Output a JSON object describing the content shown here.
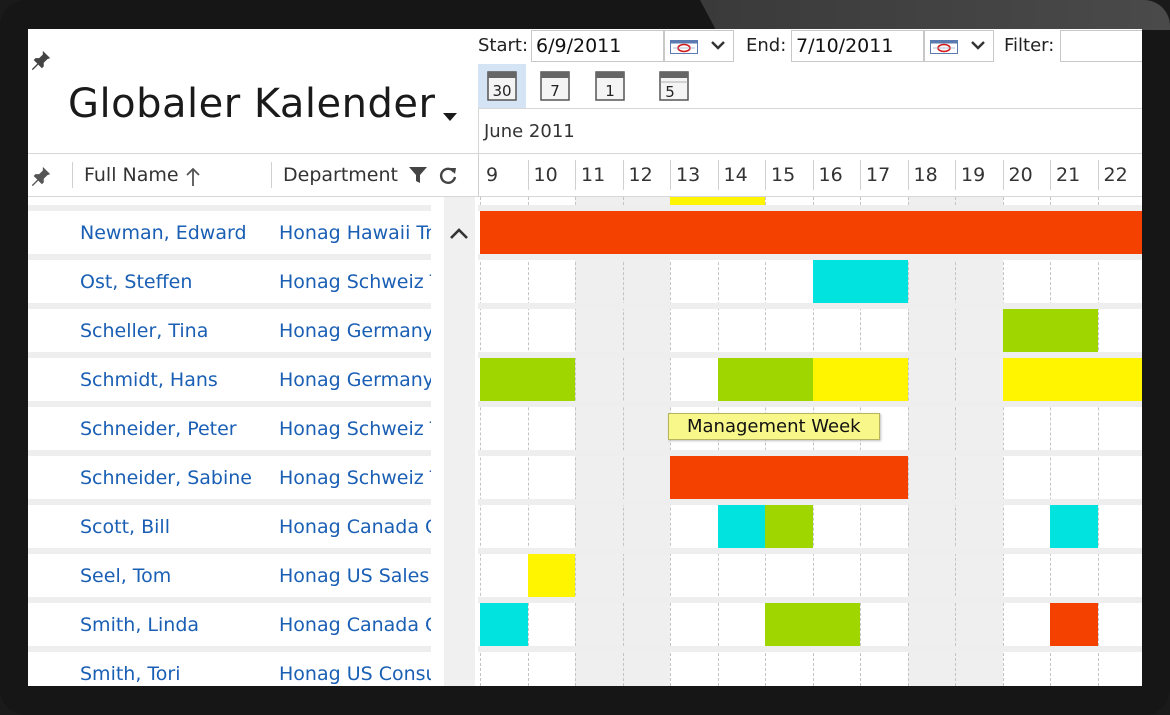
{
  "app": {
    "title": "Globaler Kalender"
  },
  "toolbar": {
    "start_label": "Start:",
    "start_value": "6/9/2011",
    "end_label": "End:",
    "end_value": "7/10/2011",
    "filter_label": "Filter:",
    "filter_value": ""
  },
  "view_buttons": [
    {
      "name": "month-view",
      "glyph": "30",
      "active": true
    },
    {
      "name": "week-view",
      "glyph": "7",
      "active": false
    },
    {
      "name": "day-view",
      "glyph": "1",
      "active": false
    },
    {
      "name": "work-week-view",
      "glyph": "5",
      "active": false
    }
  ],
  "calendar": {
    "month_label": "June 2011",
    "days": [
      "9",
      "10",
      "11",
      "12",
      "13",
      "14",
      "15",
      "16",
      "17",
      "18",
      "19",
      "20",
      "21",
      "22"
    ]
  },
  "table": {
    "columns": {
      "full_name": "Full Name",
      "department": "Department"
    },
    "rows": [
      {
        "name": "Newman, Edward",
        "dept": "Honag Hawaii Tr"
      },
      {
        "name": "Ost, Steffen",
        "dept": "Honag Schweiz T"
      },
      {
        "name": "Scheller, Tina",
        "dept": "Honag Germany"
      },
      {
        "name": "Schmidt, Hans",
        "dept": "Honag Germany"
      },
      {
        "name": "Schneider, Peter",
        "dept": "Honag Schweiz T"
      },
      {
        "name": "Schneider, Sabine",
        "dept": "Honag Schweiz T"
      },
      {
        "name": "Scott, Bill",
        "dept": "Honag Canada C"
      },
      {
        "name": "Seel, Tom",
        "dept": "Honag US Sales"
      },
      {
        "name": "Smith, Linda",
        "dept": "Honag Canada C"
      },
      {
        "name": "Smith, Tori",
        "dept": "Honag US Consu"
      }
    ]
  },
  "tooltip": {
    "text": "Management Week"
  },
  "colors": {
    "red": "#f54100",
    "cyan": "#00e3df",
    "green": "#a0d600",
    "yellow": "#fff500",
    "link": "#1a5fb4"
  },
  "bars": [
    {
      "row": -1,
      "start": 4,
      "end": 6,
      "color": "yellow"
    },
    {
      "row": 0,
      "start": 0,
      "end": 14,
      "color": "red"
    },
    {
      "row": 1,
      "start": 7,
      "end": 9,
      "color": "cyan"
    },
    {
      "row": 2,
      "start": 11,
      "end": 13,
      "color": "green"
    },
    {
      "row": 3,
      "start": 0,
      "end": 2,
      "color": "green"
    },
    {
      "row": 3,
      "start": 5,
      "end": 7,
      "color": "green"
    },
    {
      "row": 3,
      "start": 7,
      "end": 9,
      "color": "yellow"
    },
    {
      "row": 3,
      "start": 11,
      "end": 14,
      "color": "yellow"
    },
    {
      "row": 5,
      "start": 4,
      "end": 9,
      "color": "red"
    },
    {
      "row": 6,
      "start": 5,
      "end": 6,
      "color": "cyan"
    },
    {
      "row": 6,
      "start": 6,
      "end": 7,
      "color": "green"
    },
    {
      "row": 6,
      "start": 12,
      "end": 13,
      "color": "cyan"
    },
    {
      "row": 7,
      "start": 1,
      "end": 2,
      "color": "yellow"
    },
    {
      "row": 8,
      "start": 0,
      "end": 1,
      "color": "cyan"
    },
    {
      "row": 8,
      "start": 6,
      "end": 8,
      "color": "green"
    },
    {
      "row": 8,
      "start": 12,
      "end": 13,
      "color": "red"
    }
  ],
  "weekend_days": [
    2,
    3,
    9,
    10
  ]
}
